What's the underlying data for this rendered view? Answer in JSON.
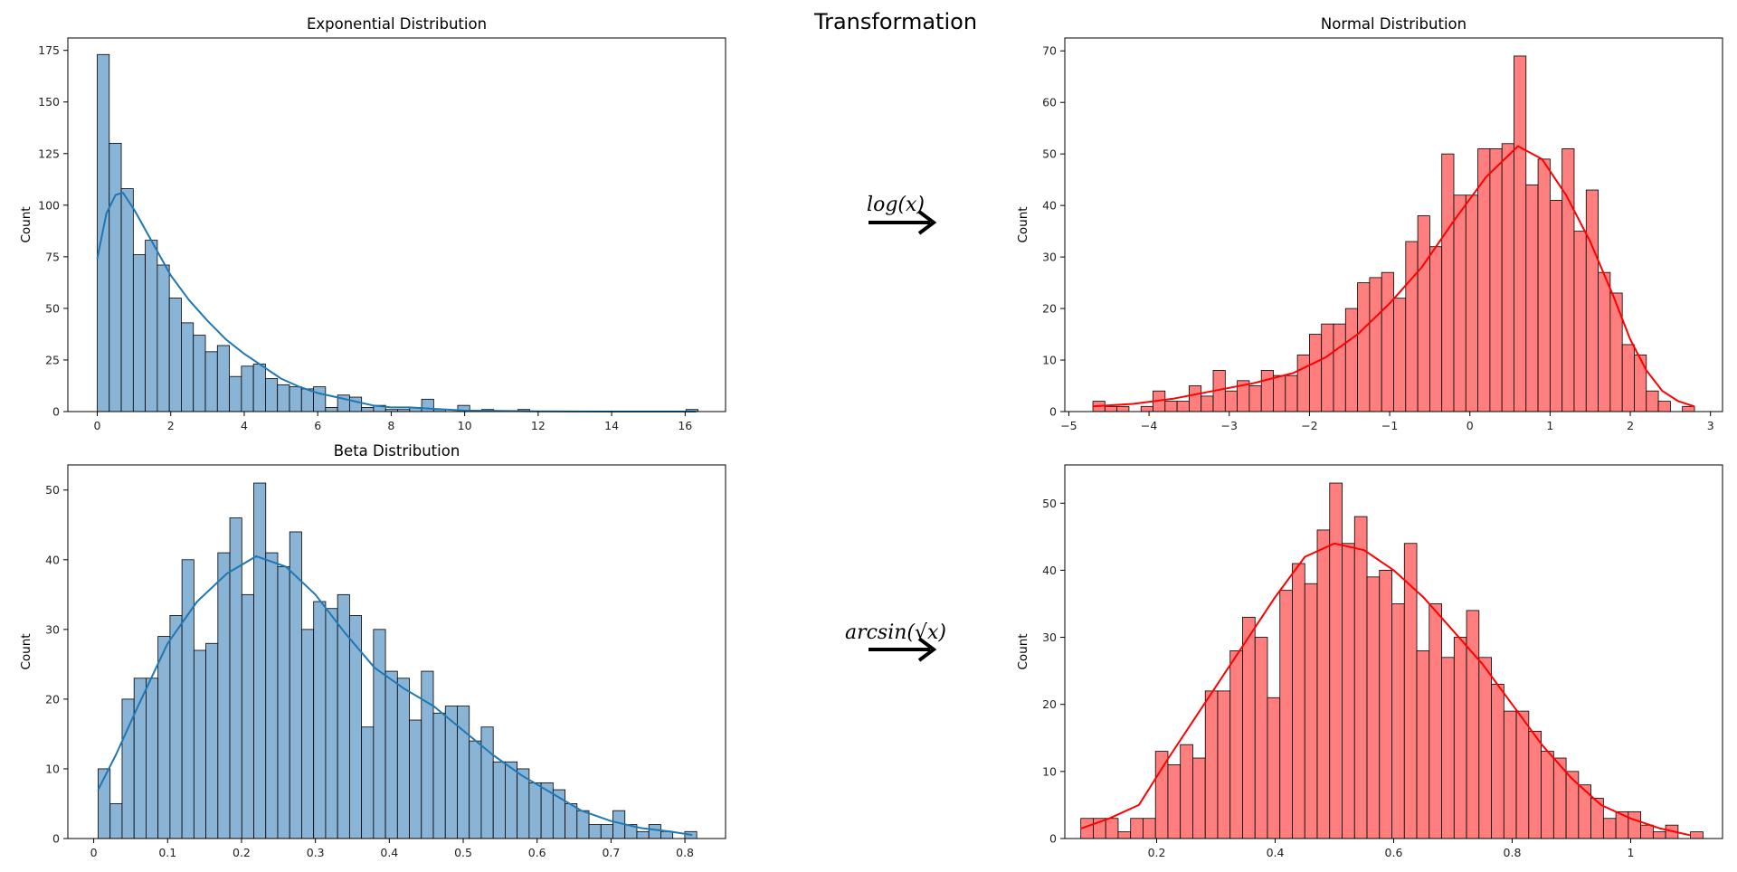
{
  "figure": {
    "suptitle": "Transformation",
    "arrows": [
      {
        "label": "log(x)",
        "row": 0
      },
      {
        "label": "arcsin(√x)",
        "row": 1
      }
    ]
  },
  "chart_data": [
    {
      "type": "bar",
      "title": "Exponential Distribution",
      "xlabel": "",
      "ylabel": "Count",
      "color": "#1f77b4",
      "fill_color": "#8ab4d6",
      "xlim": [
        -0.8,
        17.1
      ],
      "ylim": [
        0,
        181
      ],
      "xticks": [
        0,
        2,
        4,
        6,
        8,
        10,
        12,
        14,
        16
      ],
      "yticks": [
        0,
        25,
        50,
        75,
        100,
        125,
        150,
        175
      ],
      "x_start": 0.0,
      "bin_width": 0.327,
      "values": [
        173,
        130,
        108,
        76,
        83,
        71,
        55,
        43,
        37,
        29,
        32,
        17,
        22,
        23,
        16,
        13,
        12,
        11,
        12,
        2,
        8,
        7,
        2,
        3,
        1,
        1,
        2,
        6,
        1,
        0,
        3,
        0,
        1,
        0,
        0,
        1,
        0,
        0,
        0,
        0,
        0,
        0,
        0,
        0,
        0,
        0,
        0,
        0,
        0,
        1
      ],
      "kde": [
        [
          0,
          74
        ],
        [
          0.25,
          96
        ],
        [
          0.5,
          105
        ],
        [
          0.7,
          106
        ],
        [
          1,
          98
        ],
        [
          1.5,
          82
        ],
        [
          2,
          66
        ],
        [
          2.5,
          54
        ],
        [
          3,
          44
        ],
        [
          3.5,
          35
        ],
        [
          4,
          28
        ],
        [
          4.5,
          22
        ],
        [
          5,
          16
        ],
        [
          5.5,
          12
        ],
        [
          6,
          9
        ],
        [
          6.5,
          7
        ],
        [
          7,
          5
        ],
        [
          7.5,
          3
        ],
        [
          8,
          2
        ],
        [
          8.5,
          2
        ],
        [
          9,
          1.5
        ],
        [
          9.5,
          1
        ],
        [
          10,
          0.5
        ],
        [
          11,
          0.3
        ],
        [
          12,
          0.1
        ],
        [
          14,
          0
        ],
        [
          16.3,
          0
        ]
      ],
      "grid": false
    },
    {
      "type": "bar",
      "title": "Normal Distribution",
      "xlabel": "",
      "ylabel": "Count",
      "color": "#ff0000",
      "fill_color": "#ff7f7f",
      "xlim": [
        -5.05,
        3.15
      ],
      "ylim": [
        0,
        72.5
      ],
      "xticks": [
        -5,
        -4,
        -3,
        -2,
        -1,
        0,
        1,
        2,
        3
      ],
      "xtick_labels": [
        "−5",
        "−4",
        "−3",
        "−2",
        "−1",
        "0",
        "1",
        "2",
        "3"
      ],
      "yticks": [
        0,
        10,
        20,
        30,
        40,
        50,
        60,
        70
      ],
      "x_start": -4.7,
      "bin_width": 0.15,
      "values": [
        2,
        1,
        1,
        0,
        1,
        4,
        2,
        2,
        5,
        3,
        8,
        4,
        6,
        5,
        8,
        7,
        7,
        11,
        15,
        17,
        17,
        20,
        25,
        26,
        27,
        22,
        33,
        38,
        32,
        50,
        42,
        42,
        51,
        51,
        52,
        69,
        44,
        49,
        41,
        51,
        35,
        43,
        27,
        23,
        13,
        11,
        4,
        2,
        0,
        1
      ],
      "kde": [
        [
          -4.7,
          1
        ],
        [
          -4.2,
          1.5
        ],
        [
          -3.7,
          2.5
        ],
        [
          -3.2,
          4
        ],
        [
          -2.7,
          5.5
        ],
        [
          -2.2,
          7.5
        ],
        [
          -1.8,
          10.5
        ],
        [
          -1.4,
          15
        ],
        [
          -1,
          21
        ],
        [
          -0.6,
          28
        ],
        [
          -0.2,
          37
        ],
        [
          0.2,
          45.5
        ],
        [
          0.6,
          51.5
        ],
        [
          0.9,
          49
        ],
        [
          1.2,
          42
        ],
        [
          1.5,
          33
        ],
        [
          1.8,
          22
        ],
        [
          2.0,
          14
        ],
        [
          2.2,
          8
        ],
        [
          2.4,
          4
        ],
        [
          2.6,
          2
        ],
        [
          2.8,
          1
        ]
      ],
      "grid": false
    },
    {
      "type": "bar",
      "title": "Beta Distribution",
      "xlabel": "",
      "ylabel": "Count",
      "color": "#1f77b4",
      "fill_color": "#8ab4d6",
      "xlim": [
        -0.035,
        0.855
      ],
      "ylim": [
        0,
        53.6
      ],
      "xticks": [
        0.0,
        0.1,
        0.2,
        0.3,
        0.4,
        0.5,
        0.6,
        0.7,
        0.8
      ],
      "yticks": [
        0,
        10,
        20,
        30,
        40,
        50
      ],
      "x_start": 0.006,
      "bin_width": 0.0162,
      "values": [
        10,
        5,
        20,
        23,
        23,
        29,
        32,
        40,
        27,
        28,
        41,
        46,
        35,
        51,
        41,
        39,
        44,
        30,
        34,
        33,
        35,
        32,
        16,
        30,
        24,
        23,
        17,
        24,
        18,
        19,
        19,
        14,
        16,
        11,
        11,
        10,
        8,
        8,
        7,
        5,
        4,
        2,
        2,
        4,
        2,
        1,
        2,
        1,
        0,
        1
      ],
      "kde": [
        [
          0.006,
          7
        ],
        [
          0.03,
          12
        ],
        [
          0.06,
          19
        ],
        [
          0.1,
          28
        ],
        [
          0.14,
          34
        ],
        [
          0.18,
          38
        ],
        [
          0.22,
          40.5
        ],
        [
          0.26,
          39
        ],
        [
          0.3,
          35
        ],
        [
          0.34,
          29.5
        ],
        [
          0.38,
          24.5
        ],
        [
          0.42,
          21.5
        ],
        [
          0.46,
          19
        ],
        [
          0.5,
          15.5
        ],
        [
          0.54,
          12
        ],
        [
          0.58,
          9
        ],
        [
          0.62,
          6.5
        ],
        [
          0.66,
          4
        ],
        [
          0.7,
          2.5
        ],
        [
          0.74,
          1.5
        ],
        [
          0.78,
          1
        ],
        [
          0.81,
          0.5
        ]
      ],
      "grid": false
    },
    {
      "type": "bar",
      "title": "",
      "xlabel": "",
      "ylabel": "Count",
      "color": "#ff0000",
      "fill_color": "#ff7f7f",
      "xlim": [
        0.045,
        1.155
      ],
      "ylim": [
        0,
        55.7
      ],
      "xticks": [
        0.2,
        0.4,
        0.6,
        0.8,
        1.0
      ],
      "yticks": [
        0,
        10,
        20,
        30,
        40,
        50
      ],
      "x_start": 0.072,
      "bin_width": 0.021,
      "values": [
        3,
        3,
        3,
        1,
        3,
        3,
        13,
        11,
        14,
        12,
        22,
        22,
        28,
        33,
        30,
        21,
        37,
        41,
        38,
        46,
        53,
        44,
        48,
        39,
        40,
        35,
        44,
        28,
        35,
        27,
        30,
        34,
        27,
        23,
        19,
        19,
        16,
        13,
        12,
        10,
        8,
        6,
        3,
        4,
        4,
        2,
        1,
        2,
        0,
        1
      ],
      "kde": [
        [
          0.072,
          1.5
        ],
        [
          0.12,
          3
        ],
        [
          0.17,
          5
        ],
        [
          0.22,
          12
        ],
        [
          0.28,
          20
        ],
        [
          0.34,
          28
        ],
        [
          0.4,
          36
        ],
        [
          0.45,
          42
        ],
        [
          0.5,
          44
        ],
        [
          0.55,
          43
        ],
        [
          0.6,
          40
        ],
        [
          0.65,
          36
        ],
        [
          0.7,
          31
        ],
        [
          0.75,
          26
        ],
        [
          0.8,
          20
        ],
        [
          0.85,
          14
        ],
        [
          0.9,
          9
        ],
        [
          0.95,
          5
        ],
        [
          1.0,
          3
        ],
        [
          1.05,
          1.5
        ],
        [
          1.1,
          0.5
        ]
      ],
      "grid": false
    }
  ]
}
